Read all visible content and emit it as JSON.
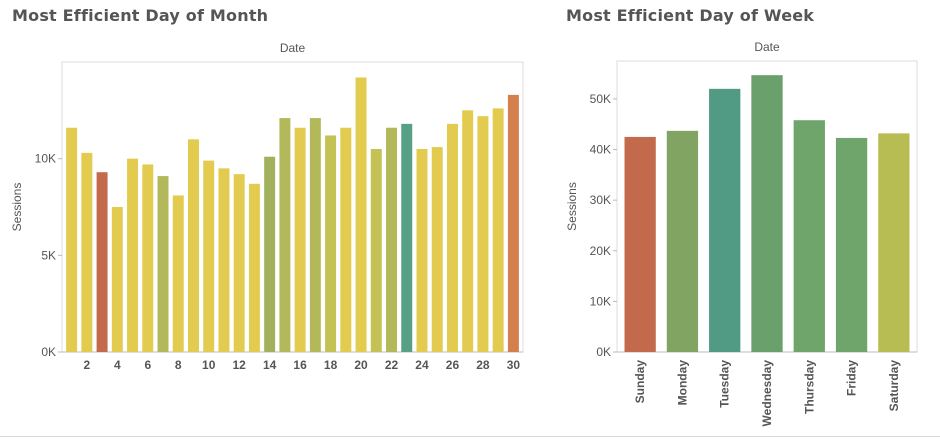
{
  "chart_data": [
    {
      "type": "bar",
      "title": "Most Efficient Day of Month",
      "xlabel": "Date",
      "ylabel": "Sessions",
      "categories": [
        1,
        2,
        3,
        4,
        5,
        6,
        7,
        8,
        9,
        10,
        11,
        12,
        13,
        14,
        15,
        16,
        17,
        18,
        19,
        20,
        21,
        22,
        23,
        24,
        25,
        26,
        27,
        28,
        29,
        30
      ],
      "x_tick_labels": [
        "2",
        "4",
        "6",
        "8",
        "10",
        "12",
        "14",
        "16",
        "18",
        "20",
        "22",
        "24",
        "26",
        "28",
        "30"
      ],
      "values": [
        11600,
        10300,
        9300,
        7500,
        10000,
        9700,
        9100,
        8100,
        11000,
        9900,
        9500,
        9200,
        8700,
        10100,
        12100,
        11600,
        12100,
        11200,
        11600,
        14200,
        10500,
        11600,
        11800,
        10500,
        10600,
        11800,
        12500,
        12200,
        12600,
        13300
      ],
      "colors": [
        "#e2cb4f",
        "#e2cb4f",
        "#c46a4c",
        "#e2cb4f",
        "#e2cb4f",
        "#e2cb4f",
        "#b3b95a",
        "#e2cb4f",
        "#e2cb4f",
        "#e2cb4f",
        "#e2cb4f",
        "#e2cb4f",
        "#e2cb4f",
        "#a1b15c",
        "#b3b95a",
        "#e2cb4f",
        "#b3b95a",
        "#c4c255",
        "#e2cb4f",
        "#e2cb4f",
        "#c4c255",
        "#b3b95a",
        "#579f85",
        "#e2cb4f",
        "#e2cb4f",
        "#e2cb4f",
        "#e2cb4f",
        "#e2cb4f",
        "#e2cb4f",
        "#d3804e"
      ],
      "y_ticks": [
        0,
        5000,
        10000
      ],
      "y_tick_labels": [
        "0K",
        "5K",
        "10K"
      ],
      "ylim": [
        0,
        15000
      ],
      "grid": false
    },
    {
      "type": "bar",
      "title": "Most Efficient Day of Week",
      "xlabel": "Date",
      "ylabel": "Sessions",
      "categories": [
        "Sunday",
        "Monday",
        "Tuesday",
        "Wednesday",
        "Thursday",
        "Friday",
        "Saturday"
      ],
      "values": [
        42500,
        43700,
        52000,
        54700,
        45800,
        42300,
        43200
      ],
      "colors": [
        "#c46a4c",
        "#82a463",
        "#519a84",
        "#69a06c",
        "#6fa56b",
        "#6fa56b",
        "#b7bd52"
      ],
      "y_ticks": [
        0,
        10000,
        20000,
        30000,
        40000,
        50000
      ],
      "y_tick_labels": [
        "0K",
        "10K",
        "20K",
        "30K",
        "40K",
        "50K"
      ],
      "ylim": [
        0,
        57500
      ],
      "grid": false
    }
  ]
}
